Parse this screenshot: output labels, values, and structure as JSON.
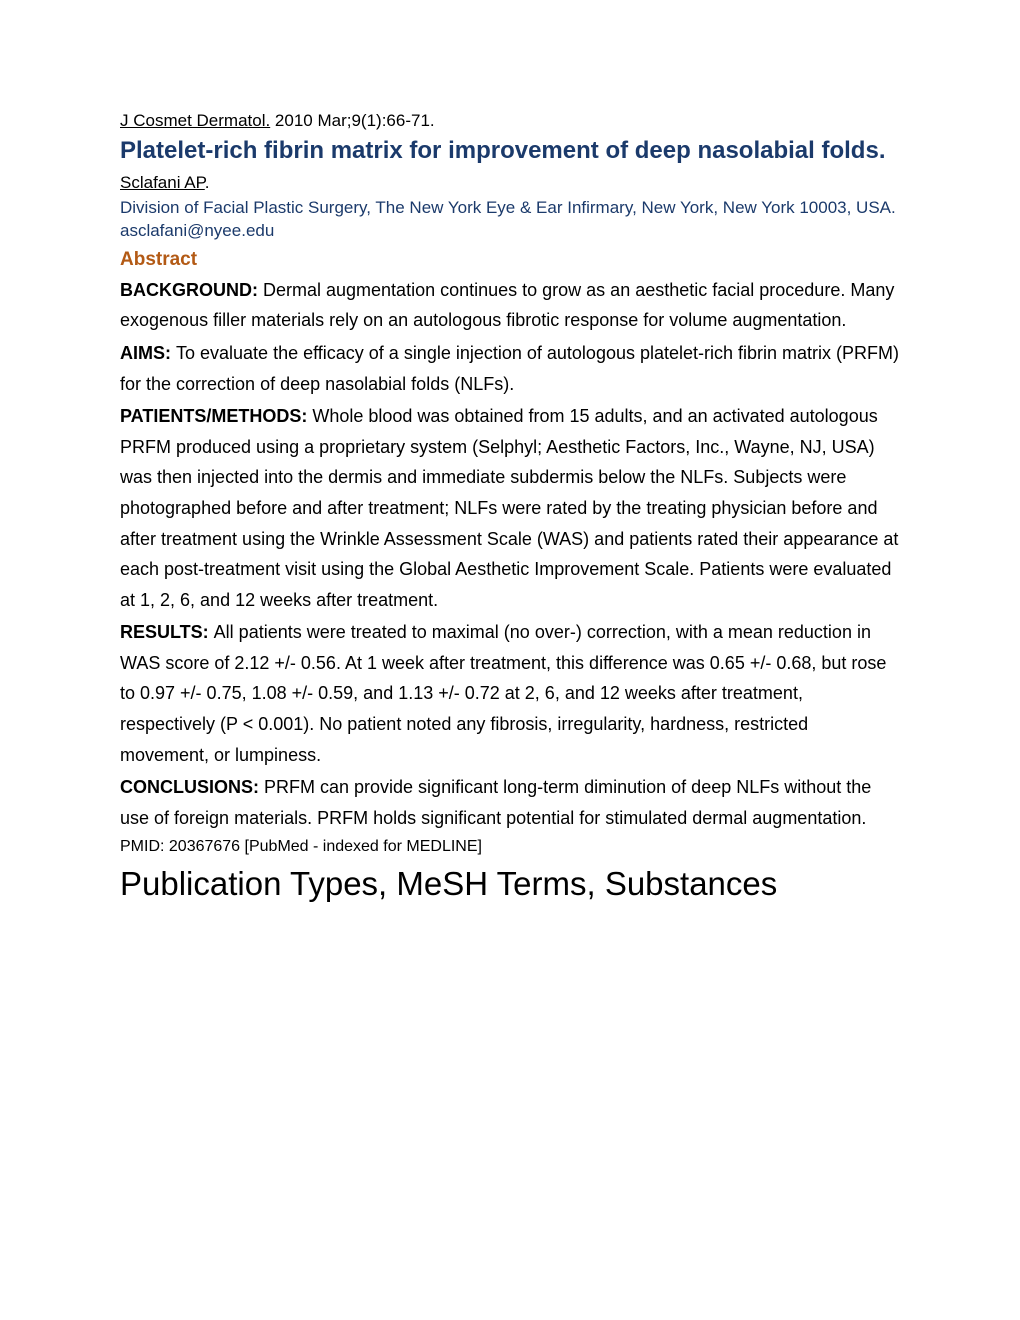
{
  "journal": {
    "name": "J Cosmet Dermatol.",
    "citation": " 2010 Mar;9(1):66-71."
  },
  "title": "Platelet-rich fibrin matrix for improvement of deep nasolabial folds.",
  "author": {
    "name": "Sclafani AP",
    "suffix": "."
  },
  "affiliation": "Division of Facial Plastic Surgery, The New York Eye & Ear Infirmary, New York, New York 10003, USA. asclafani@nyee.edu",
  "abstract_heading": "Abstract",
  "sections": {
    "background": {
      "label": "BACKGROUND: ",
      "text": "Dermal augmentation continues to grow as an aesthetic facial procedure. Many exogenous filler materials rely on an autologous fibrotic response for volume augmentation."
    },
    "aims": {
      "label": "AIMS: ",
      "text": "To evaluate the efficacy of a single injection of autologous platelet-rich fibrin matrix (PRFM) for the correction of deep nasolabial folds (NLFs)."
    },
    "methods": {
      "label": "PATIENTS/METHODS: ",
      "text": "Whole blood was obtained from 15 adults, and an activated autologous PRFM produced using a proprietary system (Selphyl; Aesthetic Factors, Inc., Wayne, NJ, USA) was then injected into the dermis and immediate subdermis below the NLFs. Subjects were photographed before and after treatment; NLFs were rated by the treating physician before and after treatment using the Wrinkle Assessment Scale (WAS) and patients rated their appearance at each post-treatment visit using the Global Aesthetic Improvement Scale. Patients were evaluated at 1, 2, 6, and 12 weeks after treatment."
    },
    "results": {
      "label": "RESULTS: ",
      "text": "All patients were treated to maximal (no over-) correction, with a mean reduction in WAS score of 2.12 +/- 0.56. At 1 week after treatment, this difference was 0.65 +/- 0.68, but rose to 0.97 +/- 0.75, 1.08 +/- 0.59, and 1.13 +/- 0.72 at 2, 6, and 12 weeks after treatment, respectively (P < 0.001). No patient noted any fibrosis, irregularity, hardness, restricted movement, or lumpiness."
    },
    "conclusions": {
      "label": "CONCLUSIONS: ",
      "text": "PRFM can provide significant long-term diminution of deep NLFs without the use of foreign materials. PRFM holds significant potential for stimulated dermal augmentation."
    }
  },
  "pmid": "PMID: 20367676 [PubMed - indexed for MEDLINE]",
  "footer_heading": "Publication Types, MeSH Terms, Substances",
  "colors": {
    "title": "#1b3a6b",
    "abstract_heading": "#b35a15",
    "body": "#000000",
    "background": "#ffffff"
  }
}
